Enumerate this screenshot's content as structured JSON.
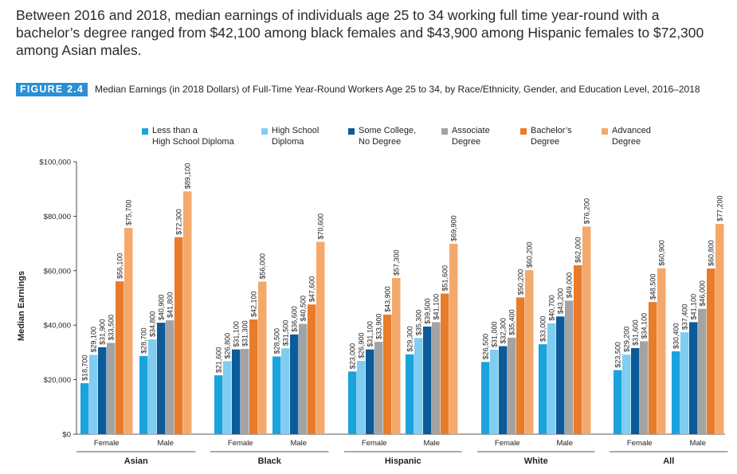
{
  "intro_text": "Between 2016 and 2018, median earnings of individuals age 25 to 34 working full time year-round with a bachelor’s degree ranged from $42,100 among black females and $43,900 among Hispanic females to $72,300 among Asian males.",
  "figure": {
    "label": "FIGURE 2.4",
    "title": "Median Earnings (in 2018 Dollars) of Full-Time Year-Round Workers Age 25 to 34, by Race/Ethnicity, Gender, and Education Level, 2016–2018"
  },
  "chart_data": {
    "type": "bar",
    "ylabel": "Median Earnings",
    "xlabel": "",
    "ylim": [
      0,
      100000
    ],
    "yticks": [
      0,
      20000,
      40000,
      60000,
      80000,
      100000
    ],
    "ytick_labels": [
      "$0",
      "$20,000",
      "$40,000",
      "$60,000",
      "$80,000",
      "$100,000"
    ],
    "legend_position": "top",
    "grid": false,
    "series": [
      {
        "name": "Less than a\nHigh School Diploma",
        "color": "#1aa3dc"
      },
      {
        "name": "High School\nDiploma",
        "color": "#7fcdf0"
      },
      {
        "name": "Some College,\nNo Degree",
        "color": "#0c5a99"
      },
      {
        "name": "Associate\nDegree",
        "color": "#a3a3a3"
      },
      {
        "name": "Bachelor’s\nDegree",
        "color": "#e87c2b"
      },
      {
        "name": "Advanced\nDegree",
        "color": "#f4a96c"
      }
    ],
    "groups": [
      {
        "name": "Asian",
        "subgroups": [
          {
            "name": "Female",
            "values": [
              18700,
              29100,
              31900,
              33500,
              56100,
              75700
            ]
          },
          {
            "name": "Male",
            "values": [
              28700,
              34800,
              40900,
              41800,
              72300,
              89100
            ]
          }
        ]
      },
      {
        "name": "Black",
        "subgroups": [
          {
            "name": "Female",
            "values": [
              21600,
              26800,
              31100,
              31300,
              42100,
              56000
            ]
          },
          {
            "name": "Male",
            "values": [
              28500,
              31500,
              36600,
              40500,
              47600,
              70600
            ]
          }
        ]
      },
      {
        "name": "Hispanic",
        "subgroups": [
          {
            "name": "Female",
            "values": [
              23000,
              26900,
              31100,
              33900,
              43900,
              57300
            ]
          },
          {
            "name": "Male",
            "values": [
              29300,
              35300,
              39500,
              41100,
              51600,
              69900
            ]
          }
        ]
      },
      {
        "name": "White",
        "subgroups": [
          {
            "name": "Female",
            "values": [
              26500,
              31000,
              32300,
              35400,
              50200,
              60200
            ]
          },
          {
            "name": "Male",
            "values": [
              33000,
              40700,
              43200,
              49000,
              62000,
              76200
            ]
          }
        ]
      },
      {
        "name": "All",
        "subgroups": [
          {
            "name": "Female",
            "values": [
              23500,
              29200,
              31600,
              34100,
              48500,
              60900
            ]
          },
          {
            "name": "Male",
            "values": [
              30400,
              37400,
              41100,
              46000,
              60800,
              77200
            ]
          }
        ]
      }
    ]
  }
}
